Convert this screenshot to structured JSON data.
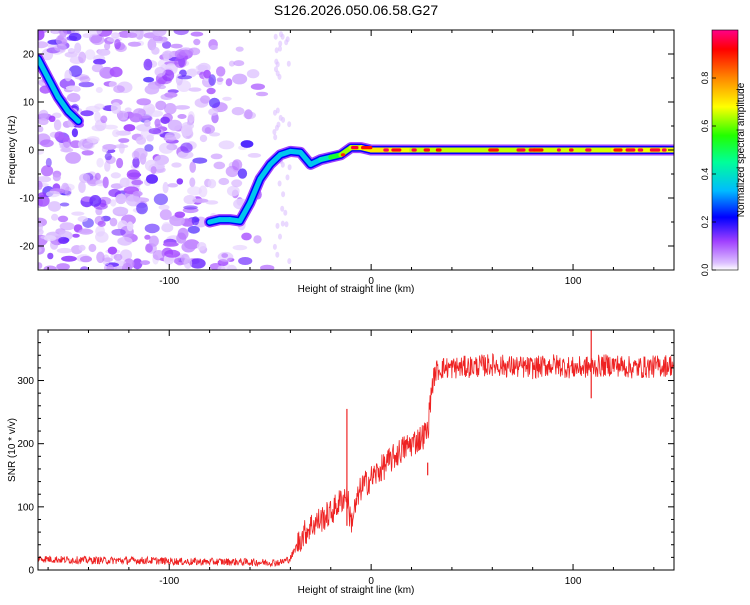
{
  "title": "S126.2026.050.06.58.G27",
  "chart_data": [
    {
      "type": "heatmap",
      "title": "S126.2026.050.06.58.G27",
      "xlabel": "Height of straight line (km)",
      "ylabel": "Frequency (Hz)",
      "xlim": [
        -165,
        150
      ],
      "ylim": [
        -25,
        25
      ],
      "xticks": [
        -100,
        0,
        100
      ],
      "yticks": [
        -20,
        -10,
        0,
        10,
        20
      ],
      "colorbar": {
        "label": "Normalized spectral amplitude",
        "range": [
          0,
          1
        ],
        "ticks": [
          "0.0",
          "0.2",
          "0.4",
          "0.6",
          "0.8"
        ],
        "colors": [
          "#ffffff",
          "#cc99ff",
          "#7700ff",
          "#0000ff",
          "#00ccff",
          "#00ff66",
          "#66ff00",
          "#ffff00",
          "#ff9900",
          "#ff0000",
          "#ff0099"
        ]
      },
      "trace": {
        "x": [
          -165,
          -160,
          -155,
          -150,
          -145,
          -140,
          -135,
          -130,
          -125,
          -120,
          -115,
          -110,
          -105,
          -100,
          -95,
          -90,
          -85,
          -80,
          -75,
          -70,
          -65,
          -60,
          -55,
          -50,
          -45,
          -40,
          -35,
          -30,
          -25,
          -20,
          -15,
          -10,
          -5,
          0,
          10,
          20,
          40,
          60,
          80,
          100,
          120,
          150
        ],
        "y": [
          19,
          15,
          11,
          8,
          6,
          null,
          null,
          null,
          null,
          null,
          null,
          null,
          null,
          null,
          null,
          null,
          null,
          -15,
          -14.5,
          -14.5,
          -14.8,
          -11,
          -6,
          -3,
          -1,
          -0.3,
          -0.5,
          -3,
          -2,
          -1.5,
          -1,
          0.5,
          0.5,
          0,
          0,
          0,
          0,
          0,
          0,
          0,
          0,
          0
        ],
        "amplitude": [
          0.2,
          0.2,
          0.2,
          0.2,
          0.15,
          null,
          null,
          null,
          null,
          null,
          null,
          null,
          null,
          null,
          null,
          null,
          null,
          0.2,
          0.2,
          0.2,
          0.2,
          0.3,
          0.4,
          0.5,
          0.55,
          0.6,
          0.6,
          0.5,
          0.6,
          0.7,
          0.85,
          0.9,
          0.9,
          0.95,
          0.95,
          0.9,
          0.9,
          0.9,
          0.9,
          0.92,
          0.9,
          0.95
        ]
      }
    },
    {
      "type": "line",
      "xlabel": "Height of straight line (km)",
      "ylabel": "SNR (10 * v/v)",
      "xlim": [
        -165,
        150
      ],
      "ylim": [
        0,
        380
      ],
      "xticks": [
        -100,
        0,
        100
      ],
      "yticks": [
        0,
        100,
        200,
        300
      ],
      "color": "#ee2222",
      "series": [
        {
          "name": "SNR",
          "x": [
            -165,
            -150,
            -130,
            -110,
            -90,
            -70,
            -55,
            -45,
            -40,
            -35,
            -30,
            -25,
            -20,
            -15,
            -12,
            -10,
            -5,
            0,
            5,
            10,
            15,
            20,
            25,
            28,
            30,
            32,
            35,
            40,
            50,
            60,
            70,
            80,
            90,
            100,
            110,
            120,
            130,
            140,
            150
          ],
          "y": [
            18,
            16,
            15,
            15,
            13,
            13,
            12,
            12,
            18,
            50,
            70,
            80,
            90,
            110,
            120,
            75,
            130,
            145,
            160,
            175,
            190,
            200,
            210,
            220,
            290,
            315,
            320,
            320,
            322,
            325,
            322,
            320,
            325,
            320,
            322,
            325,
            320,
            322,
            325
          ]
        }
      ],
      "spikes": [
        {
          "x": -12,
          "y": 255
        },
        {
          "x": 28,
          "y": 150
        },
        {
          "x": 109,
          "y": 380
        }
      ]
    }
  ]
}
